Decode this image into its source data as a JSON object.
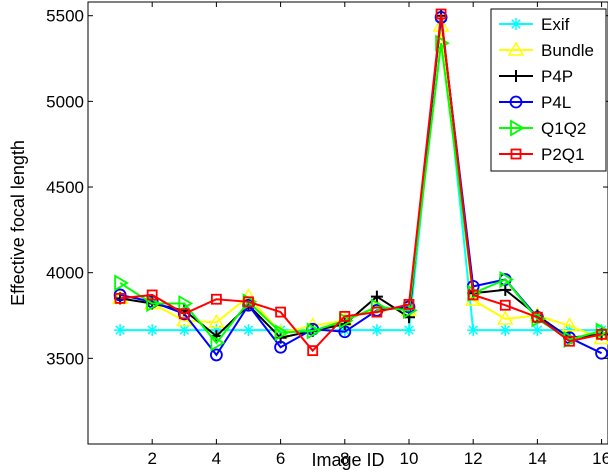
{
  "chart_data": {
    "type": "line",
    "title": "",
    "xlabel": "Image ID",
    "ylabel": "Effective focal length",
    "xlim": [
      0,
      16.2
    ],
    "ylim": [
      3000,
      5580
    ],
    "xticks": [
      2,
      4,
      6,
      8,
      10,
      12,
      14,
      16
    ],
    "yticks": [
      3500,
      4000,
      4500,
      5000,
      5500
    ],
    "grid": false,
    "legend_position": "top-right",
    "x": [
      1,
      2,
      3,
      4,
      5,
      6,
      7,
      8,
      9,
      10,
      11,
      12,
      13,
      14,
      15,
      16
    ],
    "series": [
      {
        "name": "Exif",
        "color": "#00ffff",
        "marker": "asterisk",
        "values": [
          3665,
          3665,
          3665,
          3665,
          3665,
          3665,
          3665,
          3665,
          3665,
          3665,
          5470,
          3665,
          3665,
          3665,
          3665,
          3665
        ]
      },
      {
        "name": "Bundle",
        "color": "#ffff00",
        "marker": "triangle-up",
        "values": [
          3850,
          3820,
          3720,
          3710,
          3860,
          3650,
          3690,
          3720,
          3800,
          3780,
          5440,
          3840,
          3730,
          3750,
          3690,
          3615
        ]
      },
      {
        "name": "P4P",
        "color": "#000000",
        "marker": "plus",
        "values": [
          3850,
          3820,
          3780,
          3630,
          3810,
          3620,
          3660,
          3700,
          3860,
          3740,
          5500,
          3880,
          3900,
          3750,
          3620,
          3640
        ]
      },
      {
        "name": "P4L",
        "color": "#0000ff",
        "marker": "circle",
        "values": [
          3870,
          3830,
          3760,
          3520,
          3810,
          3565,
          3670,
          3655,
          3780,
          3800,
          5490,
          3920,
          3960,
          3740,
          3620,
          3530
        ]
      },
      {
        "name": "Q1Q2",
        "color": "#00ff00",
        "marker": "triangle-right",
        "values": [
          3940,
          3820,
          3820,
          3590,
          3830,
          3650,
          3660,
          3720,
          3800,
          3780,
          5340,
          3880,
          3960,
          3730,
          3610,
          3660
        ]
      },
      {
        "name": "P2Q1",
        "color": "#ff0000",
        "marker": "square",
        "values": [
          3850,
          3870,
          3760,
          3845,
          3830,
          3770,
          3545,
          3745,
          3770,
          3815,
          5510,
          3870,
          3810,
          3740,
          3600,
          3640
        ]
      }
    ]
  }
}
